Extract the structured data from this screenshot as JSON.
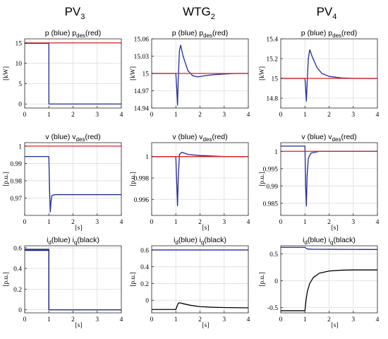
{
  "columns": [
    {
      "title": "PV",
      "sub": "3"
    },
    {
      "title": "WTG",
      "sub": "2"
    },
    {
      "title": "PV",
      "sub": "4"
    }
  ],
  "chart_data": [
    {
      "type": "line",
      "col": 0,
      "row": 0,
      "title_parts": [
        {
          "t": "p (blue)   p"
        },
        {
          "t": "des",
          "sub": true
        },
        {
          "t": "(red)"
        }
      ],
      "xlabel": "",
      "ylabel": "[kW]",
      "xlim": [
        0,
        4
      ],
      "ylim": [
        -1,
        16
      ],
      "xticks": [
        0,
        1,
        2,
        3,
        4
      ],
      "yticks": [
        0,
        5,
        10,
        15
      ],
      "series": [
        {
          "color": "#1f2a9a",
          "points": [
            [
              0,
              14.9
            ],
            [
              0.999,
              14.9
            ],
            [
              1.0,
              14.9
            ],
            [
              1.001,
              0
            ],
            [
              4,
              0
            ]
          ]
        },
        {
          "color": "#e02020",
          "points": [
            [
              0,
              15
            ],
            [
              4,
              15
            ]
          ]
        }
      ]
    },
    {
      "type": "line",
      "col": 1,
      "row": 0,
      "title_parts": [
        {
          "t": "p (blue)   p"
        },
        {
          "t": "des",
          "sub": true
        },
        {
          "t": "(red)"
        }
      ],
      "xlabel": "",
      "ylabel": "[kW]",
      "xlim": [
        0,
        4
      ],
      "ylim": [
        14.94,
        15.06
      ],
      "xticks": [
        0,
        1,
        2,
        3,
        4
      ],
      "yticks": [
        14.94,
        14.97,
        15,
        15.03,
        15.06
      ],
      "series": [
        {
          "color": "#1f2a9a",
          "points": [
            [
              0,
              15.0
            ],
            [
              1.0,
              15.0
            ],
            [
              1.03,
              14.98
            ],
            [
              1.07,
              14.945
            ],
            [
              1.1,
              14.99
            ],
            [
              1.15,
              15.04
            ],
            [
              1.2,
              15.049
            ],
            [
              1.3,
              15.03
            ],
            [
              1.5,
              15.005
            ],
            [
              1.7,
              14.996
            ],
            [
              1.9,
              14.994
            ],
            [
              2.2,
              14.996
            ],
            [
              2.6,
              14.998
            ],
            [
              3,
              14.999
            ],
            [
              3.5,
              15.0
            ],
            [
              4,
              15.0
            ]
          ]
        },
        {
          "color": "#e02020",
          "points": [
            [
              0,
              15
            ],
            [
              4,
              15
            ]
          ]
        }
      ]
    },
    {
      "type": "line",
      "col": 2,
      "row": 0,
      "title_parts": [
        {
          "t": "p (blue)   p"
        },
        {
          "t": "des",
          "sub": true
        },
        {
          "t": "(red)"
        }
      ],
      "xlabel": "",
      "ylabel": "[kW]",
      "xlim": [
        0,
        4
      ],
      "ylim": [
        14.7,
        15.4
      ],
      "xticks": [
        0,
        1,
        2,
        3,
        4
      ],
      "yticks": [
        14.8,
        15,
        15.2,
        15.4
      ],
      "series": [
        {
          "color": "#1f2a9a",
          "points": [
            [
              0,
              15.0
            ],
            [
              1.0,
              15.0
            ],
            [
              1.03,
              14.9
            ],
            [
              1.06,
              14.77
            ],
            [
              1.09,
              14.95
            ],
            [
              1.14,
              15.2
            ],
            [
              1.2,
              15.29
            ],
            [
              1.3,
              15.22
            ],
            [
              1.5,
              15.11
            ],
            [
              1.7,
              15.05
            ],
            [
              2.0,
              15.02
            ],
            [
              2.5,
              15.005
            ],
            [
              3,
              15.0
            ],
            [
              4,
              15.0
            ]
          ]
        },
        {
          "color": "#e02020",
          "points": [
            [
              0,
              15
            ],
            [
              4,
              15
            ]
          ]
        }
      ]
    },
    {
      "type": "line",
      "col": 0,
      "row": 1,
      "title_parts": [
        {
          "t": "v (blue)   v"
        },
        {
          "t": "des",
          "sub": true
        },
        {
          "t": "(red)"
        }
      ],
      "xlabel": "[s]",
      "ylabel": "[p.u.]",
      "xlim": [
        0,
        4
      ],
      "ylim": [
        0.96,
        1.002
      ],
      "xticks": [
        0,
        1,
        2,
        3,
        4
      ],
      "yticks": [
        0.97,
        0.98,
        0.99,
        1
      ],
      "series": [
        {
          "color": "#1f2a9a",
          "points": [
            [
              0,
              0.994
            ],
            [
              0.999,
              0.994
            ],
            [
              1.0,
              0.994
            ],
            [
              1.03,
              0.975
            ],
            [
              1.06,
              0.962
            ],
            [
              1.09,
              0.968
            ],
            [
              1.13,
              0.9715
            ],
            [
              1.25,
              0.972
            ],
            [
              4,
              0.972
            ]
          ]
        },
        {
          "color": "#e02020",
          "points": [
            [
              0,
              1.0
            ],
            [
              4,
              1.0
            ]
          ]
        }
      ]
    },
    {
      "type": "line",
      "col": 1,
      "row": 1,
      "title_parts": [
        {
          "t": "v (blue)   v"
        },
        {
          "t": "des",
          "sub": true
        },
        {
          "t": "(red)"
        }
      ],
      "xlabel": "[s]",
      "ylabel": "[p.u.]",
      "xlim": [
        0,
        4
      ],
      "ylim": [
        0.9945,
        1.0013
      ],
      "xticks": [
        0,
        1,
        2,
        3,
        4
      ],
      "yticks": [
        0.996,
        0.998,
        1
      ],
      "series": [
        {
          "color": "#1f2a9a",
          "points": [
            [
              0,
              1.0
            ],
            [
              1.0,
              1.0
            ],
            [
              1.03,
              0.998
            ],
            [
              1.07,
              0.9954
            ],
            [
              1.1,
              0.998
            ],
            [
              1.15,
              1.0002
            ],
            [
              1.25,
              1.0004
            ],
            [
              1.5,
              1.0002
            ],
            [
              2,
              1.0001
            ],
            [
              3,
              1.0
            ],
            [
              4,
              1.0
            ]
          ]
        },
        {
          "color": "#e02020",
          "points": [
            [
              0,
              1.0
            ],
            [
              4,
              1.0
            ]
          ]
        }
      ]
    },
    {
      "type": "line",
      "col": 2,
      "row": 1,
      "title_parts": [
        {
          "t": "v (blue)   v"
        },
        {
          "t": "des",
          "sub": true
        },
        {
          "t": "(red)"
        }
      ],
      "xlabel": "[s]",
      "ylabel": "[p.u.]",
      "xlim": [
        0,
        4
      ],
      "ylim": [
        0.9815,
        1.0025
      ],
      "xticks": [
        0,
        1,
        2,
        3,
        4
      ],
      "yticks": [
        0.985,
        0.99,
        0.995,
        1
      ],
      "series": [
        {
          "color": "#1f2a9a",
          "points": [
            [
              0,
              1.0015
            ],
            [
              0.999,
              1.0015
            ],
            [
              1.0,
              1.0015
            ],
            [
              1.03,
              0.99
            ],
            [
              1.06,
              0.9842
            ],
            [
              1.09,
              0.993
            ],
            [
              1.14,
              0.998
            ],
            [
              1.25,
              0.9995
            ],
            [
              1.6,
              1.0
            ],
            [
              4,
              1.0
            ]
          ]
        },
        {
          "color": "#e02020",
          "points": [
            [
              0,
              1.0
            ],
            [
              4,
              1.0
            ]
          ]
        }
      ]
    },
    {
      "type": "line",
      "col": 0,
      "row": 2,
      "title_parts": [
        {
          "t": "i"
        },
        {
          "t": "d",
          "sub": true
        },
        {
          "t": "(blue)   i"
        },
        {
          "t": "q",
          "sub": true
        },
        {
          "t": "(black)"
        }
      ],
      "xlabel": "[s]",
      "ylabel": "[p.u.]",
      "xlim": [
        0,
        4
      ],
      "ylim": [
        -0.03,
        0.62
      ],
      "xticks": [
        0,
        1,
        2,
        3,
        4
      ],
      "yticks": [
        0,
        0.2,
        0.4,
        0.6
      ],
      "series": [
        {
          "color": "#000000",
          "points": [
            [
              0,
              0.585
            ],
            [
              0.999,
              0.585
            ],
            [
              1.001,
              0
            ],
            [
              4,
              0
            ]
          ]
        },
        {
          "color": "#1f2a9a",
          "points": [
            [
              0,
              0.575
            ],
            [
              0.999,
              0.575
            ],
            [
              1.001,
              0.0
            ],
            [
              4,
              0.0
            ]
          ]
        }
      ]
    },
    {
      "type": "line",
      "col": 1,
      "row": 2,
      "title_parts": [
        {
          "t": "i"
        },
        {
          "t": "d",
          "sub": true
        },
        {
          "t": "(blue)   i"
        },
        {
          "t": "q",
          "sub": true
        },
        {
          "t": "(black)"
        }
      ],
      "xlabel": "[s]",
      "ylabel": "[p.u.]",
      "xlim": [
        0,
        4
      ],
      "ylim": [
        -0.15,
        0.65
      ],
      "xticks": [
        0,
        1,
        2,
        3,
        4
      ],
      "yticks": [
        0,
        0.2,
        0.4,
        0.6
      ],
      "series": [
        {
          "color": "#1f2a9a",
          "points": [
            [
              0,
              0.6
            ],
            [
              4,
              0.6
            ]
          ]
        },
        {
          "color": "#000000",
          "points": [
            [
              0,
              -0.11
            ],
            [
              1.0,
              -0.11
            ],
            [
              1.05,
              -0.07
            ],
            [
              1.1,
              -0.035
            ],
            [
              1.15,
              -0.03
            ],
            [
              1.3,
              -0.04
            ],
            [
              1.6,
              -0.06
            ],
            [
              2,
              -0.075
            ],
            [
              2.5,
              -0.083
            ],
            [
              3,
              -0.087
            ],
            [
              4,
              -0.09
            ]
          ]
        }
      ]
    },
    {
      "type": "line",
      "col": 2,
      "row": 2,
      "title_parts": [
        {
          "t": "i"
        },
        {
          "t": "d",
          "sub": true
        },
        {
          "t": "(blue)   i"
        },
        {
          "t": "q",
          "sub": true
        },
        {
          "t": "(black)"
        }
      ],
      "xlabel": "[s]",
      "ylabel": "[p.u.]",
      "xlim": [
        0,
        4
      ],
      "ylim": [
        -0.6,
        0.65
      ],
      "xticks": [
        0,
        1,
        2,
        3,
        4
      ],
      "yticks": [
        -0.5,
        0,
        0.5
      ],
      "series": [
        {
          "color": "#1f2a9a",
          "points": [
            [
              0,
              0.62
            ],
            [
              1.0,
              0.62
            ],
            [
              1.1,
              0.59
            ],
            [
              1.3,
              0.585
            ],
            [
              4,
              0.58
            ]
          ]
        },
        {
          "color": "#000000",
          "points": [
            [
              0,
              -0.56
            ],
            [
              1.0,
              -0.56
            ],
            [
              1.05,
              -0.35
            ],
            [
              1.1,
              -0.2
            ],
            [
              1.2,
              -0.05
            ],
            [
              1.35,
              0.06
            ],
            [
              1.6,
              0.14
            ],
            [
              2,
              0.18
            ],
            [
              2.5,
              0.195
            ],
            [
              3,
              0.2
            ],
            [
              4,
              0.2
            ]
          ]
        }
      ]
    }
  ]
}
